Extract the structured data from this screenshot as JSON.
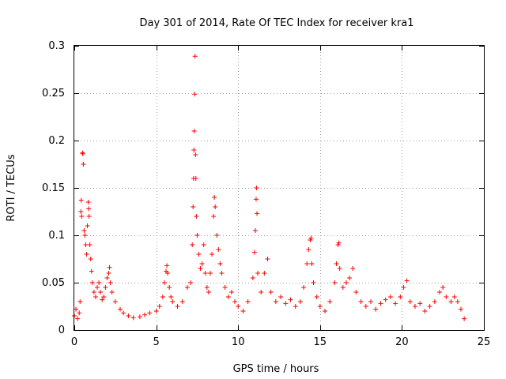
{
  "chart_data": {
    "type": "scatter",
    "title": "Day 301 of 2014, Rate Of TEC Index for receiver kra1",
    "xlabel": "GPS time / hours",
    "ylabel": "ROTI / TECUs",
    "xlim": [
      0,
      25
    ],
    "ylim": [
      0,
      0.3
    ],
    "xticks": [
      0,
      5,
      10,
      15,
      20,
      25
    ],
    "xtick_labels": [
      "0",
      "5",
      "10",
      "15",
      "20",
      "25"
    ],
    "yticks": [
      0,
      0.05,
      0.1,
      0.15,
      0.2,
      0.25,
      0.3
    ],
    "ytick_labels": [
      "0",
      "0.05",
      "0.1",
      "0.15",
      "0.2",
      "0.25",
      "0.3"
    ],
    "grid": true,
    "marker": "+",
    "series": [
      {
        "name": "ROTI",
        "color": "#ff0000",
        "points": [
          [
            0.0,
            0.015
          ],
          [
            0.1,
            0.022
          ],
          [
            0.2,
            0.012
          ],
          [
            0.3,
            0.018
          ],
          [
            0.35,
            0.03
          ],
          [
            0.4,
            0.125
          ],
          [
            0.42,
            0.137
          ],
          [
            0.45,
            0.12
          ],
          [
            0.5,
            0.187
          ],
          [
            0.52,
            0.186
          ],
          [
            0.55,
            0.175
          ],
          [
            0.6,
            0.105
          ],
          [
            0.65,
            0.1
          ],
          [
            0.7,
            0.09
          ],
          [
            0.75,
            0.08
          ],
          [
            0.8,
            0.11
          ],
          [
            0.85,
            0.135
          ],
          [
            0.88,
            0.128
          ],
          [
            0.9,
            0.12
          ],
          [
            0.95,
            0.09
          ],
          [
            1.0,
            0.075
          ],
          [
            1.05,
            0.062
          ],
          [
            1.1,
            0.05
          ],
          [
            1.2,
            0.04
          ],
          [
            1.3,
            0.035
          ],
          [
            1.4,
            0.045
          ],
          [
            1.5,
            0.05
          ],
          [
            1.6,
            0.04
          ],
          [
            1.7,
            0.032
          ],
          [
            1.8,
            0.035
          ],
          [
            1.9,
            0.045
          ],
          [
            2.0,
            0.055
          ],
          [
            2.1,
            0.06
          ],
          [
            2.15,
            0.066
          ],
          [
            2.2,
            0.05
          ],
          [
            2.3,
            0.04
          ],
          [
            2.5,
            0.03
          ],
          [
            2.8,
            0.022
          ],
          [
            3.0,
            0.018
          ],
          [
            3.3,
            0.015
          ],
          [
            3.6,
            0.013
          ],
          [
            4.0,
            0.014
          ],
          [
            4.3,
            0.016
          ],
          [
            4.6,
            0.018
          ],
          [
            5.0,
            0.02
          ],
          [
            5.2,
            0.025
          ],
          [
            5.4,
            0.035
          ],
          [
            5.5,
            0.05
          ],
          [
            5.6,
            0.062
          ],
          [
            5.65,
            0.068
          ],
          [
            5.7,
            0.06
          ],
          [
            5.8,
            0.045
          ],
          [
            5.9,
            0.035
          ],
          [
            6.0,
            0.03
          ],
          [
            6.3,
            0.025
          ],
          [
            6.6,
            0.03
          ],
          [
            6.9,
            0.045
          ],
          [
            7.1,
            0.05
          ],
          [
            7.2,
            0.09
          ],
          [
            7.25,
            0.13
          ],
          [
            7.28,
            0.16
          ],
          [
            7.3,
            0.19
          ],
          [
            7.32,
            0.21
          ],
          [
            7.35,
            0.249
          ],
          [
            7.37,
            0.289
          ],
          [
            7.4,
            0.185
          ],
          [
            7.42,
            0.16
          ],
          [
            7.45,
            0.12
          ],
          [
            7.5,
            0.1
          ],
          [
            7.6,
            0.08
          ],
          [
            7.7,
            0.065
          ],
          [
            7.8,
            0.07
          ],
          [
            7.9,
            0.09
          ],
          [
            8.0,
            0.06
          ],
          [
            8.1,
            0.045
          ],
          [
            8.2,
            0.04
          ],
          [
            8.3,
            0.06
          ],
          [
            8.4,
            0.08
          ],
          [
            8.5,
            0.12
          ],
          [
            8.55,
            0.14
          ],
          [
            8.6,
            0.13
          ],
          [
            8.7,
            0.1
          ],
          [
            8.8,
            0.085
          ],
          [
            8.9,
            0.07
          ],
          [
            9.0,
            0.06
          ],
          [
            9.2,
            0.045
          ],
          [
            9.4,
            0.035
          ],
          [
            9.6,
            0.04
          ],
          [
            9.8,
            0.03
          ],
          [
            10.0,
            0.025
          ],
          [
            10.3,
            0.02
          ],
          [
            10.6,
            0.03
          ],
          [
            10.9,
            0.055
          ],
          [
            11.0,
            0.082
          ],
          [
            11.05,
            0.105
          ],
          [
            11.1,
            0.138
          ],
          [
            11.12,
            0.15
          ],
          [
            11.15,
            0.123
          ],
          [
            11.2,
            0.06
          ],
          [
            11.4,
            0.04
          ],
          [
            11.6,
            0.06
          ],
          [
            11.8,
            0.075
          ],
          [
            12.0,
            0.04
          ],
          [
            12.3,
            0.03
          ],
          [
            12.6,
            0.035
          ],
          [
            12.9,
            0.028
          ],
          [
            13.2,
            0.032
          ],
          [
            13.5,
            0.025
          ],
          [
            13.8,
            0.03
          ],
          [
            14.0,
            0.045
          ],
          [
            14.2,
            0.07
          ],
          [
            14.3,
            0.085
          ],
          [
            14.4,
            0.095
          ],
          [
            14.45,
            0.097
          ],
          [
            14.5,
            0.07
          ],
          [
            14.6,
            0.05
          ],
          [
            14.8,
            0.035
          ],
          [
            15.0,
            0.025
          ],
          [
            15.3,
            0.02
          ],
          [
            15.6,
            0.03
          ],
          [
            15.9,
            0.05
          ],
          [
            16.0,
            0.07
          ],
          [
            16.1,
            0.09
          ],
          [
            16.15,
            0.092
          ],
          [
            16.2,
            0.065
          ],
          [
            16.4,
            0.045
          ],
          [
            16.6,
            0.05
          ],
          [
            16.8,
            0.055
          ],
          [
            17.0,
            0.065
          ],
          [
            17.2,
            0.04
          ],
          [
            17.5,
            0.03
          ],
          [
            17.8,
            0.025
          ],
          [
            18.1,
            0.03
          ],
          [
            18.4,
            0.022
          ],
          [
            18.7,
            0.028
          ],
          [
            19.0,
            0.032
          ],
          [
            19.3,
            0.035
          ],
          [
            19.6,
            0.028
          ],
          [
            19.9,
            0.035
          ],
          [
            20.1,
            0.045
          ],
          [
            20.3,
            0.052
          ],
          [
            20.5,
            0.03
          ],
          [
            20.8,
            0.025
          ],
          [
            21.1,
            0.028
          ],
          [
            21.4,
            0.02
          ],
          [
            21.7,
            0.025
          ],
          [
            22.0,
            0.03
          ],
          [
            22.3,
            0.04
          ],
          [
            22.5,
            0.045
          ],
          [
            22.7,
            0.035
          ],
          [
            23.0,
            0.03
          ],
          [
            23.2,
            0.035
          ],
          [
            23.4,
            0.03
          ],
          [
            23.6,
            0.022
          ],
          [
            23.8,
            0.012
          ]
        ]
      }
    ]
  }
}
